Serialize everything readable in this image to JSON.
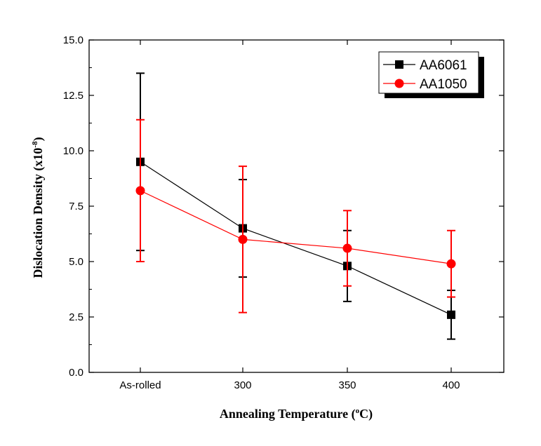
{
  "chart_data": {
    "type": "line",
    "categories": [
      "As-rolled",
      "300",
      "350",
      "400"
    ],
    "xlabel": "Annealing Temperature (",
    "xlabel_sup": "o",
    "xlabel_end": "C)",
    "ylabel": "Dislocation Density (x10",
    "ylabel_sup": "-8",
    "ylabel_end": ")",
    "ylim": [
      0,
      15
    ],
    "yticks": [
      "0.0",
      "2.5",
      "5.0",
      "7.5",
      "10.0",
      "12.5",
      "15.0"
    ],
    "legend_position": "top-right",
    "grid": false,
    "series": [
      {
        "name": "AA6061",
        "color": "#000000",
        "marker": "square",
        "values": [
          9.5,
          6.5,
          4.8,
          2.6
        ],
        "err_low": [
          5.5,
          4.3,
          3.2,
          1.5
        ],
        "err_high": [
          13.5,
          8.7,
          6.4,
          3.7
        ]
      },
      {
        "name": "AA1050",
        "color": "#ff0000",
        "marker": "circle",
        "values": [
          8.2,
          6.0,
          5.6,
          4.9
        ],
        "err_low": [
          5.0,
          2.7,
          3.9,
          3.4
        ],
        "err_high": [
          11.4,
          9.3,
          7.3,
          6.4
        ]
      }
    ]
  }
}
